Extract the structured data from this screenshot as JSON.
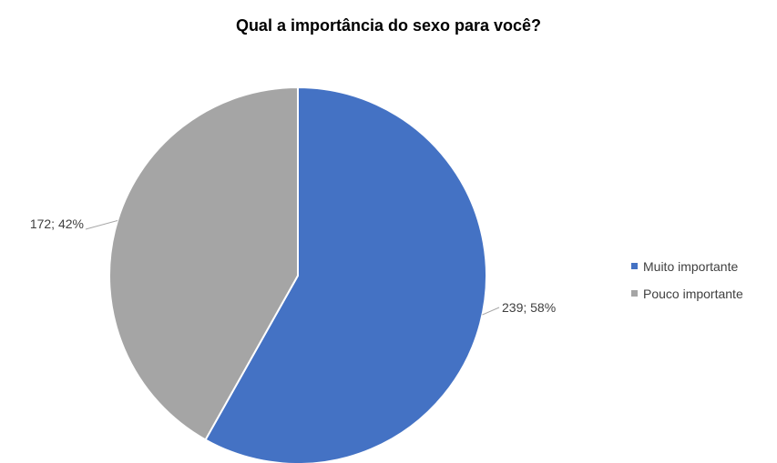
{
  "chart_data": {
    "type": "pie",
    "title": "Qual a importância do sexo para você?",
    "categories": [
      "Muito importante",
      "Pouco importante"
    ],
    "values": [
      239,
      172
    ],
    "percentages": [
      58,
      42
    ],
    "data_labels": [
      "239; 58%",
      "172; 42%"
    ],
    "colors": [
      "#4472c4",
      "#a5a5a5"
    ],
    "legend_position": "right"
  }
}
